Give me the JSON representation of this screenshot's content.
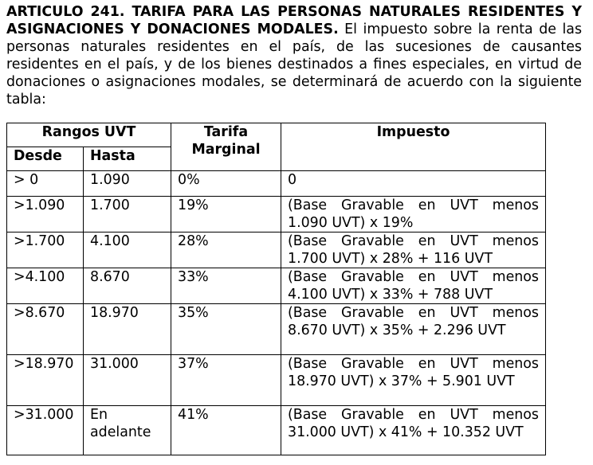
{
  "article": {
    "title": "ARTICULO 241. TARIFA PARA LAS PERSONAS NATURALES RESIDENTES Y ASIGNACIONES Y DONACIONES MODALES.",
    "body": " El impuesto sobre la renta de las personas naturales residentes en el país, de las sucesiones de causantes residentes en el país, y de los bienes destinados a fines especiales, en virtud de donaciones o asignaciones modales, se determinará de acuerdo con la siguiente tabla:"
  },
  "table": {
    "headers": {
      "rangos": "Rangos UVT",
      "desde": "Desde",
      "hasta": "Hasta",
      "tarifa": "Tarifa Marginal",
      "impuesto": "Impuesto"
    },
    "rows": [
      {
        "desde": "> 0",
        "hasta": "1.090",
        "tarifa": "0%",
        "impuesto": "0"
      },
      {
        "desde": ">1.090",
        "hasta": "1.700",
        "tarifa": "19%",
        "impuesto": "(Base Gravable en UVT menos 1.090 UVT) x 19%"
      },
      {
        "desde": ">1.700",
        "hasta": "4.100",
        "tarifa": "28%",
        "impuesto": "(Base Gravable en UVT menos 1.700 UVT) x 28% + 116 UVT"
      },
      {
        "desde": ">4.100",
        "hasta": "8.670",
        "tarifa": "33%",
        "impuesto": "(Base Gravable en UVT menos 4.100 UVT) x 33% + 788 UVT"
      },
      {
        "desde": ">8.670",
        "hasta": "18.970",
        "tarifa": "35%",
        "impuesto": "(Base Gravable en UVT menos 8.670 UVT) x 35% + 2.296 UVT"
      },
      {
        "desde": ">18.970",
        "hasta": "31.000",
        "tarifa": "37%",
        "impuesto": "(Base Gravable en UVT menos 18.970 UVT) x 37% + 5.901 UVT"
      },
      {
        "desde": ">31.000",
        "hasta": "En adelante",
        "tarifa": "41%",
        "impuesto": "(Base Gravable en UVT menos 31.000 UVT) x 41% + 10.352 UVT"
      }
    ]
  }
}
